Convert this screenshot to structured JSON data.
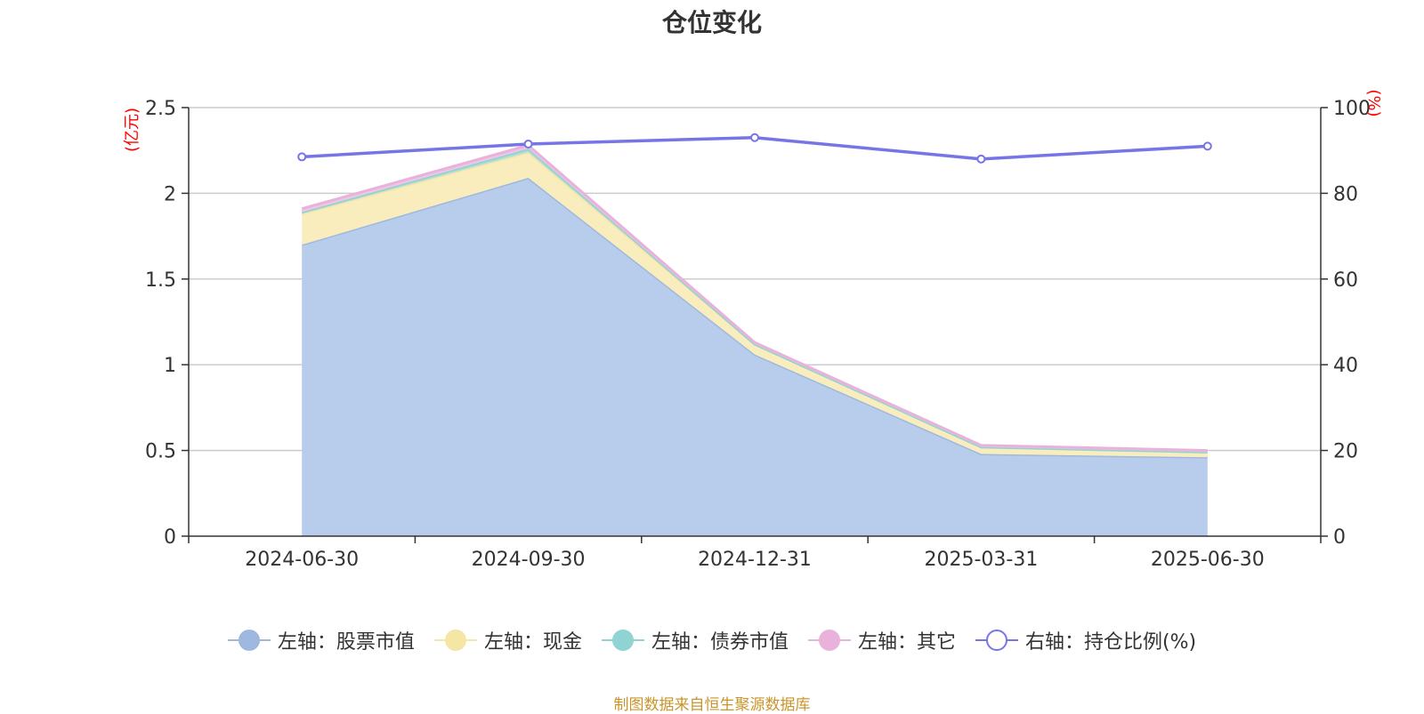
{
  "title": "仓位变化",
  "source_note": "制图数据来自恒生聚源数据库",
  "chart_data": {
    "type": "area",
    "title": "仓位变化",
    "categories": [
      "2024-06-30",
      "2024-09-30",
      "2024-12-31",
      "2025-03-31",
      "2025-06-30"
    ],
    "y_left": {
      "label": "(亿元)",
      "range": [
        0,
        2.5
      ],
      "ticks": [
        "0",
        "0.5",
        "1",
        "1.5",
        "2",
        "2.5"
      ]
    },
    "y_right": {
      "label": "(%)",
      "range": [
        0,
        100
      ],
      "ticks": [
        "0",
        "20",
        "40",
        "60",
        "80",
        "100"
      ]
    },
    "stacked": true,
    "grid": true,
    "legend_position": "bottom",
    "series": [
      {
        "name": "左轴：股票市值",
        "axis": "left",
        "values": [
          1.7,
          2.09,
          1.06,
          0.48,
          0.46
        ],
        "color": "#9eb8df",
        "fill": "#b8cdeb"
      },
      {
        "name": "左轴：现金",
        "axis": "left",
        "values": [
          0.18,
          0.15,
          0.06,
          0.04,
          0.03
        ],
        "color": "#f5e6a3",
        "fill": "#f9edbd"
      },
      {
        "name": "左轴：债券市值",
        "axis": "left",
        "values": [
          0.01,
          0.02,
          0.0,
          0.0,
          0.0
        ],
        "color": "#8fd3d2",
        "fill": "#a8dedd"
      },
      {
        "name": "左轴：其它",
        "axis": "left",
        "values": [
          0.02,
          0.02,
          0.01,
          0.01,
          0.01
        ],
        "color": "#e8b2da",
        "fill": "#efc6e4"
      },
      {
        "name": "右轴：持仓比例(%)",
        "axis": "right",
        "type": "line",
        "values": [
          88.5,
          91.5,
          93.0,
          88.0,
          91.0
        ],
        "color": "#7575e8"
      }
    ]
  }
}
